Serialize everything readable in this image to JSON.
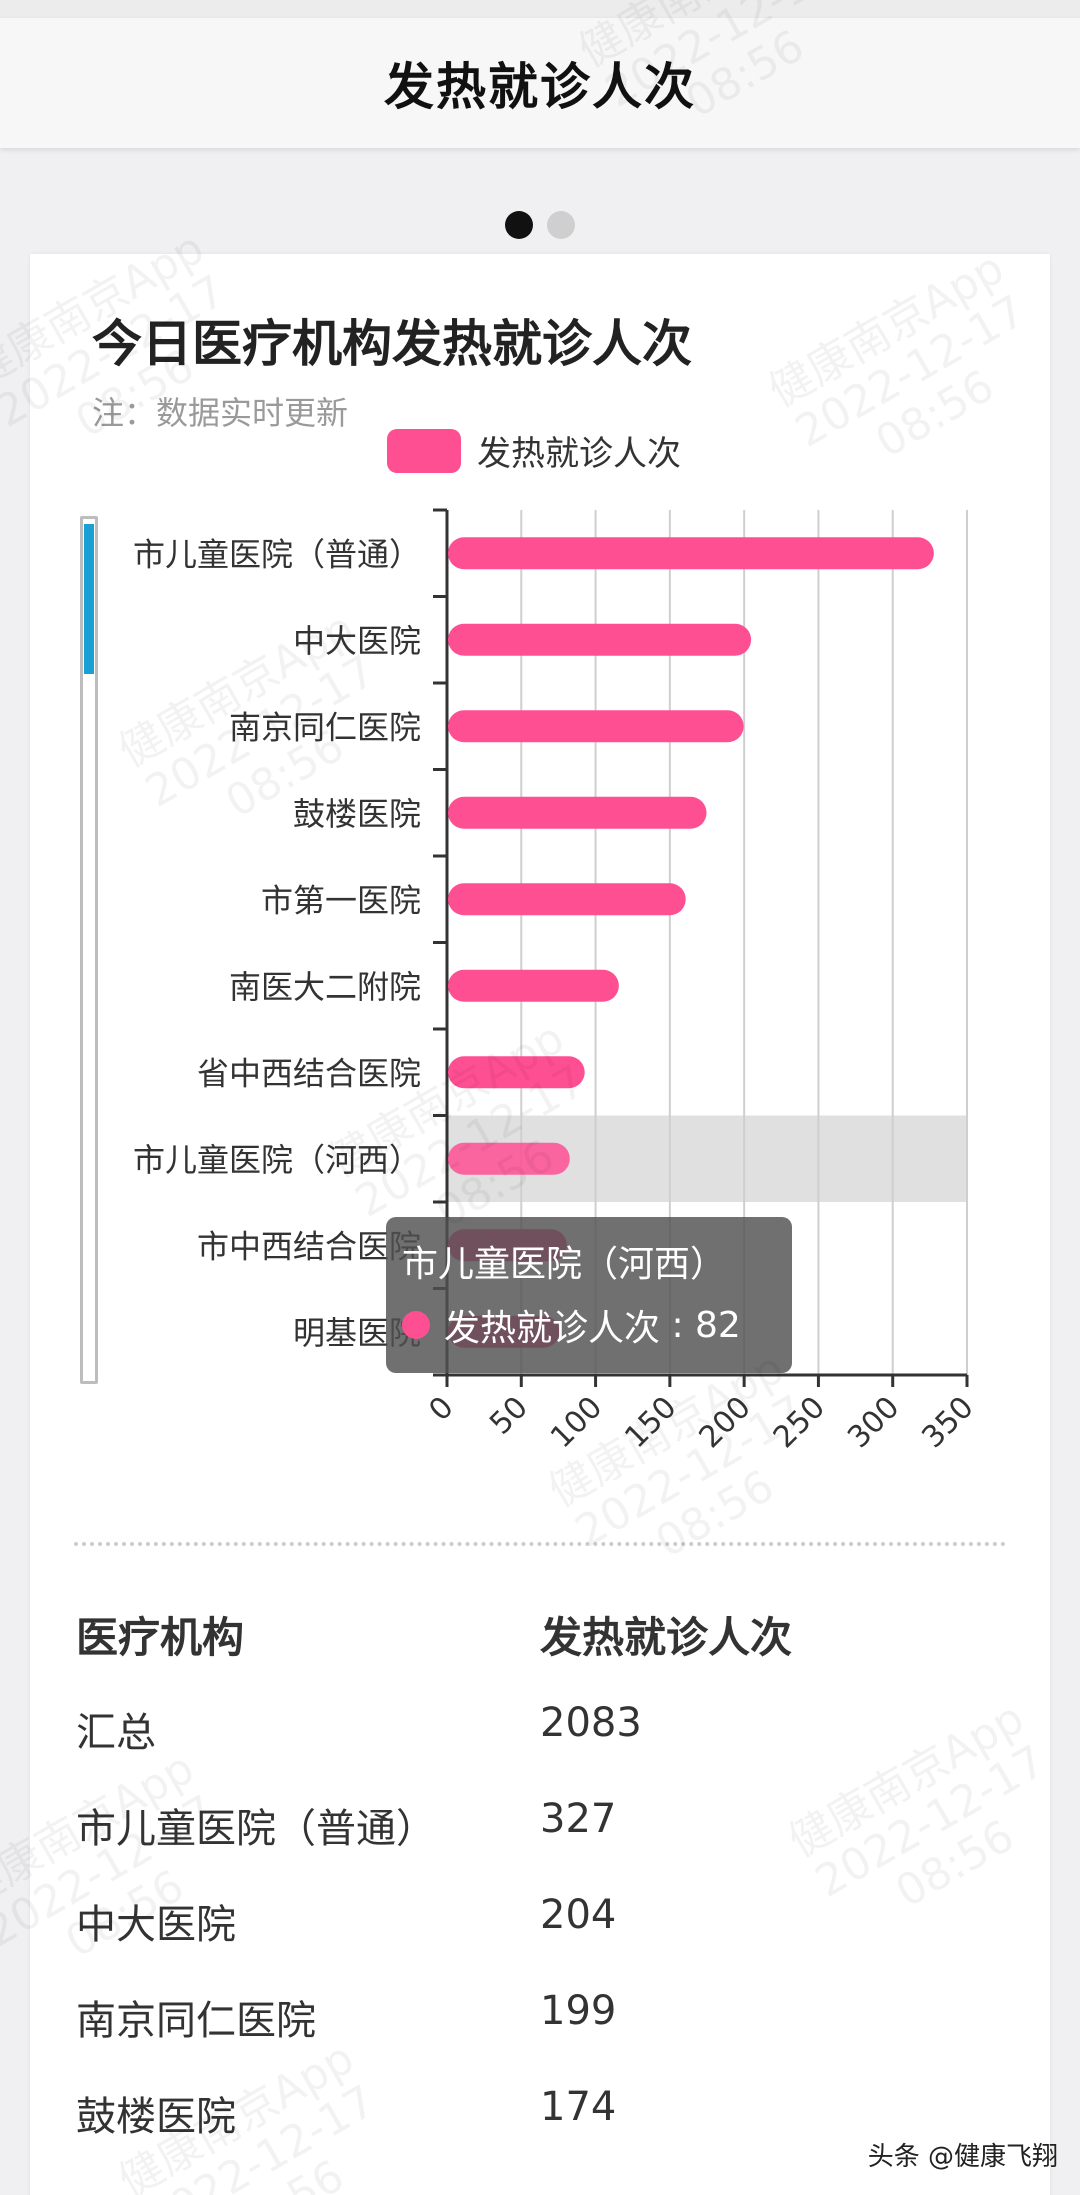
{
  "header": {
    "title": "发热就诊人次"
  },
  "pager": {
    "total": 2,
    "active": 0
  },
  "card": {
    "title": "今日医疗机构发热就诊人次",
    "note": "注：数据实时更新"
  },
  "legend": {
    "label": "发热就诊人次"
  },
  "chart_data": {
    "type": "bar",
    "orientation": "horizontal",
    "categories": [
      "市儿童医院（普通）",
      "中大医院",
      "南京同仁医院",
      "鼓楼医院",
      "市第一医院",
      "南医大二附院",
      "省中西结合医院",
      "市儿童医院（河西）",
      "市中西结合医院",
      "明基医院"
    ],
    "series": [
      {
        "name": "发热就诊人次",
        "values": [
          327,
          204,
          199,
          174,
          160,
          115,
          92,
          82,
          80,
          75
        ]
      }
    ],
    "xlim": [
      0,
      350
    ],
    "xticks": [
      "0",
      "50",
      "100",
      "150",
      "200",
      "250",
      "300",
      "350"
    ],
    "grid": true,
    "highlighted_category": "市儿童医院（河西）",
    "colors": {
      "bar": "#ff4f93",
      "highlight": "#e0e0e0"
    }
  },
  "tooltip": {
    "title": "市儿童医院（河西）",
    "series_label": "发热就诊人次",
    "value_text": "82"
  },
  "table": {
    "headers": [
      "医疗机构",
      "发热就诊人次"
    ],
    "rows": [
      [
        "汇总",
        "2083"
      ],
      [
        "市儿童医院（普通）",
        "327"
      ],
      [
        "中大医院",
        "204"
      ],
      [
        "南京同仁医院",
        "199"
      ],
      [
        "鼓楼医院",
        "174"
      ]
    ]
  },
  "watermark": {
    "text": "健康南京App\n2022-12-17\n08:56"
  },
  "footer": {
    "brand": "头条 @健康飞翔"
  }
}
